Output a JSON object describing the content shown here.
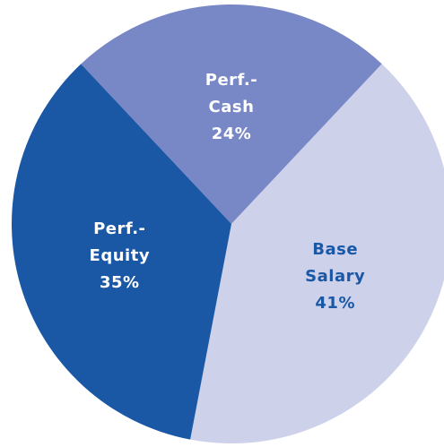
{
  "chart_data": {
    "type": "pie",
    "categories": [
      "Perf.-\nCash",
      "Base\nSalary",
      "Perf.-\nEquity"
    ],
    "values": [
      24,
      41,
      35
    ],
    "value_labels": [
      "24%",
      "41%",
      "35%"
    ],
    "colors": [
      "#7887c5",
      "#cdd1ea",
      "#1a58a6"
    ],
    "label_colors": [
      "#ffffff",
      "#1a58a6",
      "#ffffff"
    ]
  }
}
